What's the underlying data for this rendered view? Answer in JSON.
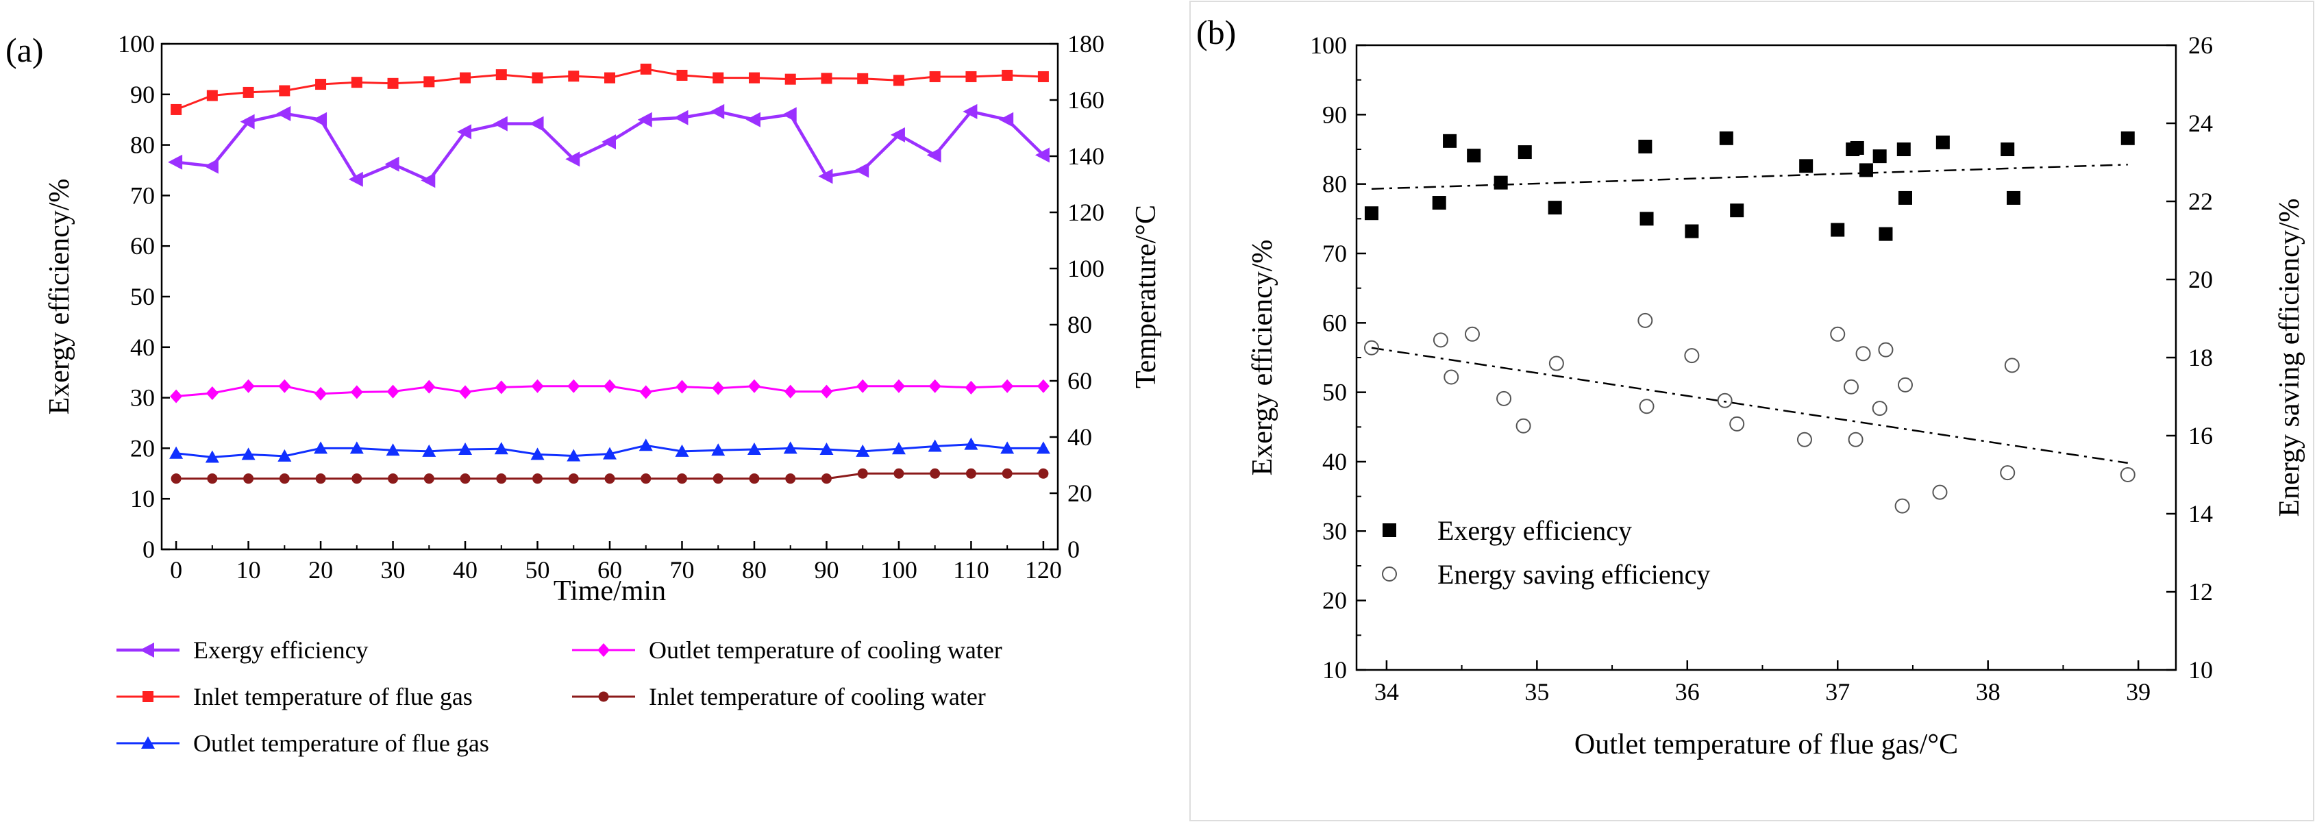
{
  "chart_data": [
    {
      "panel": "(a)",
      "type": "line",
      "xlabel": "Time/min",
      "ylabel": "Exergy efficiency/%",
      "ylabel_right": "Temperature/°C",
      "xlim": [
        -2,
        122
      ],
      "ylim": [
        0,
        100
      ],
      "ylim_right": [
        0,
        180
      ],
      "x_ticks": [
        0,
        10,
        20,
        30,
        40,
        50,
        60,
        70,
        80,
        90,
        100,
        110,
        120
      ],
      "y_ticks": [
        0,
        10,
        20,
        30,
        40,
        50,
        60,
        70,
        80,
        90,
        100
      ],
      "y_ticks_right": [
        0,
        20,
        40,
        60,
        80,
        100,
        120,
        140,
        160,
        180
      ],
      "x": [
        0,
        5,
        10,
        15,
        20,
        25,
        30,
        35,
        40,
        45,
        50,
        55,
        60,
        65,
        70,
        75,
        80,
        85,
        90,
        95,
        100,
        105,
        110,
        115,
        120
      ],
      "series": [
        {
          "name": "Exergy efficiency",
          "axis": "left",
          "color": "#9b30ff",
          "marker": "tri-left",
          "values": [
            76.6,
            75.8,
            84.6,
            86.2,
            85.0,
            73.2,
            76.2,
            73.0,
            82.6,
            84.2,
            84.2,
            77.2,
            80.6,
            85.0,
            85.4,
            86.6,
            85.0,
            86.0,
            73.8,
            75.0,
            82.0,
            78.0,
            86.6,
            85.0,
            78.0
          ]
        },
        {
          "name": "Outlet temperature of cooling water",
          "axis": "right",
          "color": "#ff00ff",
          "marker": "diamond",
          "values": [
            54.5,
            55.6,
            58.1,
            58.1,
            55.4,
            56.0,
            56.2,
            57.9,
            56.0,
            57.7,
            58.1,
            58.1,
            58.1,
            56.0,
            57.9,
            57.4,
            58.1,
            56.2,
            56.2,
            58.1,
            58.1,
            58.1,
            57.6,
            58.1,
            58.1
          ]
        },
        {
          "name": "Inlet temperature of flue gas",
          "axis": "right",
          "color": "#ff2020",
          "marker": "square",
          "values": [
            156.6,
            161.6,
            162.7,
            163.3,
            165.6,
            166.3,
            165.9,
            166.5,
            167.9,
            169.0,
            167.9,
            168.5,
            167.9,
            171.0,
            168.8,
            167.9,
            167.9,
            167.4,
            167.7,
            167.6,
            167.0,
            168.3,
            168.3,
            168.8,
            168.3
          ]
        },
        {
          "name": "Inlet temperature of cooling water",
          "axis": "right",
          "color": "#8b1a1a",
          "marker": "circle",
          "values": [
            25.2,
            25.2,
            25.2,
            25.2,
            25.2,
            25.2,
            25.2,
            25.2,
            25.2,
            25.2,
            25.2,
            25.2,
            25.2,
            25.2,
            25.2,
            25.2,
            25.2,
            25.2,
            25.2,
            27.0,
            27.0,
            27.0,
            27.0,
            27.0,
            27.0
          ]
        },
        {
          "name": "Outlet temperature of flue gas",
          "axis": "right",
          "color": "#1030ff",
          "marker": "triangle",
          "values": [
            34.2,
            32.8,
            33.8,
            33.2,
            36.0,
            36.0,
            35.3,
            34.9,
            35.6,
            35.8,
            33.8,
            33.3,
            34.0,
            37.0,
            34.9,
            35.3,
            35.6,
            36.0,
            35.6,
            34.9,
            35.8,
            36.7,
            37.4,
            36.0,
            36.0
          ]
        }
      ],
      "legend": {
        "placement": "below",
        "entries": [
          "Exergy efficiency",
          "Outlet temperature of cooling water",
          "Inlet temperature of flue gas",
          "Inlet temperature of cooling water",
          "Outlet temperature of flue gas"
        ]
      }
    },
    {
      "panel": "(b)",
      "type": "scatter",
      "xlabel": "Outlet temperature of flue gas/°C",
      "ylabel": "Exergy efficiency/%",
      "ylabel_right": "Energy saving efficiency/%",
      "xlim": [
        33.8,
        39.25
      ],
      "ylim": [
        10,
        100
      ],
      "ylim_right": [
        10,
        26
      ],
      "x_ticks": [
        34,
        35,
        36,
        37,
        38,
        39
      ],
      "y_ticks": [
        10,
        20,
        30,
        40,
        50,
        60,
        70,
        80,
        90,
        100
      ],
      "y_ticks_right": [
        10,
        12,
        14,
        16,
        18,
        20,
        22,
        24,
        26
      ],
      "series": [
        {
          "name": "Exergy efficiency",
          "axis": "left",
          "marker": "filled-square",
          "color": "#000000",
          "x": [
            33.9,
            34.35,
            34.42,
            34.58,
            34.76,
            34.92,
            35.12,
            35.72,
            35.73,
            36.03,
            36.26,
            36.33,
            36.79,
            37.0,
            37.1,
            37.13,
            37.19,
            37.28,
            37.32,
            37.44,
            37.45,
            37.7,
            38.13,
            38.17,
            38.93
          ],
          "y": [
            75.8,
            77.3,
            86.2,
            84.1,
            80.2,
            84.6,
            76.6,
            85.4,
            75.0,
            73.2,
            86.6,
            76.2,
            82.6,
            73.4,
            85.0,
            85.2,
            82.0,
            84.0,
            72.8,
            85.0,
            78.0,
            86.0,
            85.0,
            78.0,
            86.6
          ]
        },
        {
          "name": "Energy saving efficiency",
          "axis": "right",
          "marker": "open-circle",
          "color": "#555555",
          "x": [
            33.9,
            34.36,
            34.43,
            34.57,
            34.78,
            34.91,
            35.13,
            35.72,
            35.73,
            36.03,
            36.25,
            36.33,
            36.78,
            37.0,
            37.09,
            37.12,
            37.17,
            37.28,
            37.32,
            37.43,
            37.45,
            37.68,
            38.13,
            38.16,
            38.93
          ],
          "y": [
            18.25,
            18.45,
            17.5,
            18.6,
            16.95,
            16.25,
            17.85,
            18.95,
            16.75,
            18.05,
            16.9,
            16.3,
            15.9,
            18.6,
            17.25,
            15.9,
            18.1,
            16.7,
            18.2,
            14.2,
            17.3,
            14.55,
            15.05,
            17.8,
            15.0
          ]
        }
      ],
      "trendlines": [
        {
          "series": "Exergy efficiency",
          "axis": "left",
          "style": "dash-dot",
          "x": [
            33.9,
            38.93
          ],
          "y": [
            79.3,
            82.8
          ]
        },
        {
          "series": "Energy saving efficiency",
          "axis": "right",
          "style": "dash-dot",
          "x": [
            33.9,
            38.93
          ],
          "y": [
            18.25,
            15.3
          ]
        }
      ],
      "legend": {
        "placement": "inside-lower-left",
        "entries": [
          "Exergy efficiency",
          "Energy saving efficiency"
        ]
      }
    }
  ]
}
